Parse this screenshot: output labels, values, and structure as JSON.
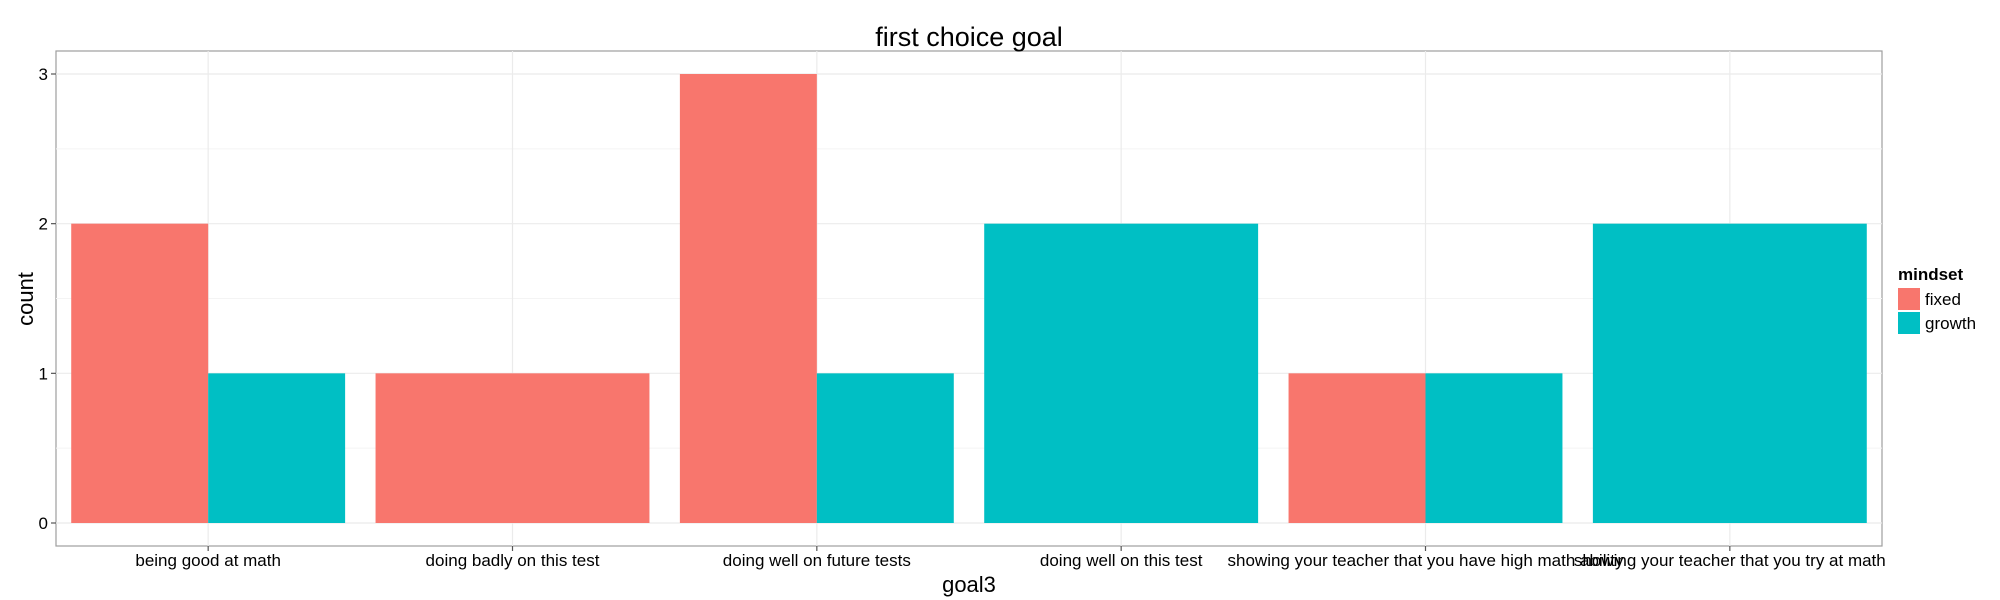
{
  "chart_data": {
    "type": "bar",
    "title": "first choice goal",
    "xlabel": "goal3",
    "ylabel": "count",
    "ylim": [
      0,
      3.15
    ],
    "yticks": [
      0,
      1,
      2,
      3
    ],
    "grid": true,
    "legend_position": "right",
    "legend_title": "mindset",
    "categories": [
      "being good at math",
      "doing badly on this test",
      "doing well on future tests",
      "doing well on this test",
      "showing your teacher that you have high math ability",
      "showing your teacher that you try at math"
    ],
    "series": [
      {
        "name": "fixed",
        "color": "#F8766D",
        "values": [
          2,
          1,
          3,
          0,
          1,
          0
        ]
      },
      {
        "name": "growth",
        "color": "#00BFC4",
        "values": [
          1,
          0,
          1,
          2,
          1,
          2
        ]
      }
    ]
  }
}
